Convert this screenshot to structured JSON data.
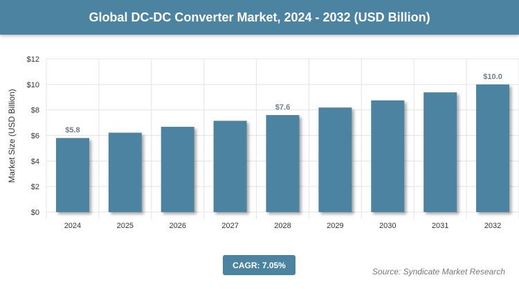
{
  "title": "Global DC-DC Converter Market, 2024 - 2032 (USD Billion)",
  "cagr": "CAGR: 7.05%",
  "source": "Source: Syndicate Market Research",
  "colors": {
    "bar": "#4c83a0",
    "header": "#4c83a0"
  },
  "chart_data": {
    "type": "bar",
    "title": "Global DC-DC Converter Market, 2024 - 2032 (USD Billion)",
    "xlabel": "",
    "ylabel": "Market Size (USD Billion)",
    "categories": [
      "2024",
      "2025",
      "2026",
      "2027",
      "2028",
      "2029",
      "2030",
      "2031",
      "2032"
    ],
    "values": [
      5.8,
      6.22,
      6.68,
      7.15,
      7.6,
      8.19,
      8.75,
      9.38,
      10.0
    ],
    "data_labels": {
      "0": "$5.8",
      "4": "$7.6",
      "8": "$10.0"
    },
    "ylim": [
      0,
      12
    ],
    "yticks": [
      "$0",
      "$2",
      "$4",
      "$6",
      "$8",
      "$10",
      "$12"
    ],
    "grid": true
  }
}
